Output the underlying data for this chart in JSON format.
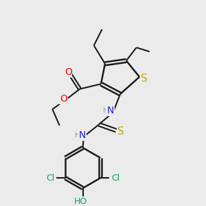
{
  "bg_color": "#ebebeb",
  "bond_color": "#1a1a1a",
  "atom_colors": {
    "O": "#ff0000",
    "S": "#ccaa00",
    "N": "#2222dd",
    "Cl": "#00aa55",
    "HO": "#00aa55",
    "H": "#999999",
    "C": "#1a1a1a"
  },
  "figsize": [
    3.0,
    3.0
  ],
  "dpi": 100
}
